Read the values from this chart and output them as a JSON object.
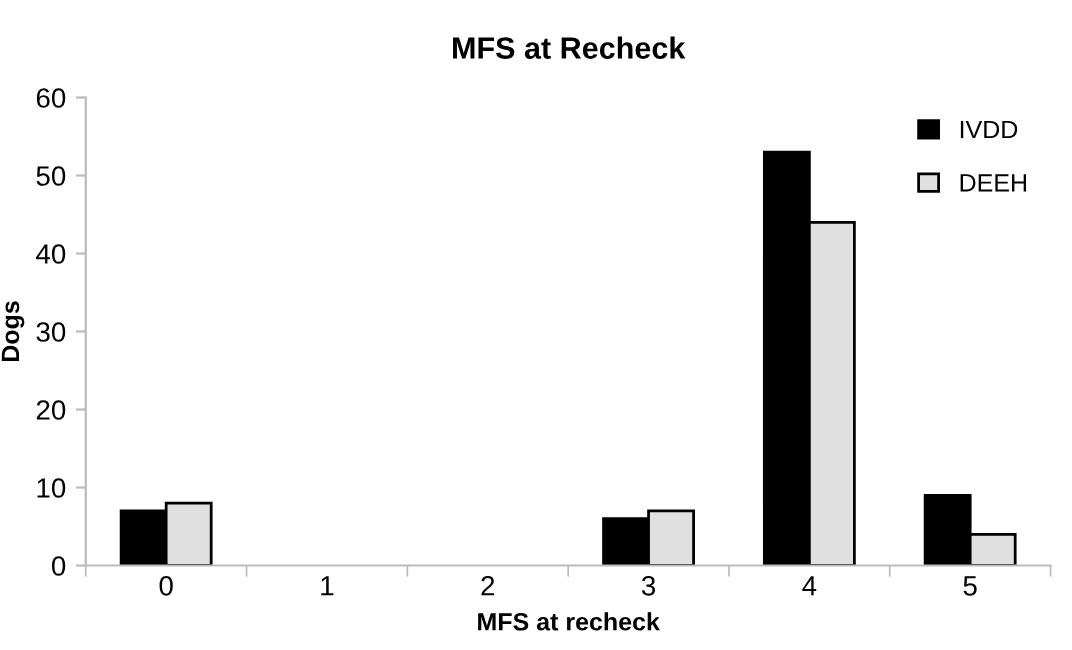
{
  "chart_data": {
    "type": "bar",
    "title": "MFS at Recheck",
    "xlabel": "MFS at recheck",
    "ylabel": "Dogs",
    "categories": [
      "0",
      "1",
      "2",
      "3",
      "4",
      "5"
    ],
    "series": [
      {
        "name": "IVDD",
        "color": "#000000",
        "values": [
          7,
          0,
          0,
          6,
          53,
          9
        ]
      },
      {
        "name": "DEEH",
        "color": "#e0e0e0",
        "values": [
          8,
          0,
          0,
          7,
          44,
          4
        ]
      }
    ],
    "ylim": [
      0,
      60
    ],
    "yticks": [
      0,
      10,
      20,
      30,
      40,
      50,
      60
    ],
    "grid": false,
    "legend": "top right"
  }
}
